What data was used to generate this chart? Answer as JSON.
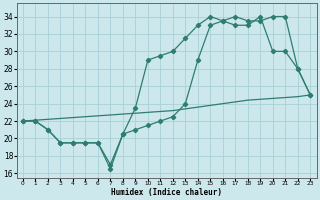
{
  "xlabel": "Humidex (Indice chaleur)",
  "bg_color": "#cce8ec",
  "grid_color": "#aad0d8",
  "line_color": "#2e7d6e",
  "xlim": [
    -0.5,
    23.5
  ],
  "ylim": [
    15.5,
    35.5
  ],
  "xticks": [
    0,
    1,
    2,
    3,
    4,
    5,
    6,
    7,
    8,
    9,
    10,
    11,
    12,
    13,
    14,
    15,
    16,
    17,
    18,
    19,
    20,
    21,
    22,
    23
  ],
  "yticks": [
    16,
    18,
    20,
    22,
    24,
    26,
    28,
    30,
    32,
    34
  ],
  "line1_x": [
    0,
    1,
    2,
    3,
    4,
    5,
    6,
    7,
    8,
    9,
    10,
    11,
    12,
    13,
    14,
    15,
    16,
    17,
    18,
    19,
    20,
    21,
    22,
    23
  ],
  "line1_y": [
    22,
    22,
    21,
    19.5,
    19.5,
    19.5,
    19.5,
    16.5,
    20.5,
    21,
    21.5,
    22,
    22.5,
    24,
    29,
    33,
    33.5,
    34,
    33.5,
    33.5,
    34,
    34,
    28,
    25
  ],
  "line2_x": [
    0,
    1,
    2,
    3,
    4,
    5,
    6,
    7,
    8,
    9,
    10,
    11,
    12,
    13,
    14,
    15,
    16,
    17,
    18,
    19,
    20,
    21,
    22,
    23
  ],
  "line2_y": [
    22,
    22,
    21,
    19.5,
    19.5,
    19.5,
    19.5,
    17,
    20.5,
    23.5,
    29,
    29.5,
    30,
    31.5,
    33,
    34,
    33.5,
    33,
    33,
    34,
    30,
    30,
    28,
    25
  ],
  "line3_x": [
    0,
    1,
    2,
    3,
    4,
    5,
    6,
    7,
    8,
    9,
    10,
    11,
    12,
    13,
    14,
    15,
    16,
    17,
    18,
    19,
    20,
    21,
    22,
    23
  ],
  "line3_y": [
    22,
    22.1,
    22.2,
    22.3,
    22.4,
    22.5,
    22.6,
    22.7,
    22.8,
    22.9,
    23.0,
    23.1,
    23.2,
    23.4,
    23.6,
    23.8,
    24.0,
    24.2,
    24.4,
    24.5,
    24.6,
    24.7,
    24.8,
    25.0
  ]
}
